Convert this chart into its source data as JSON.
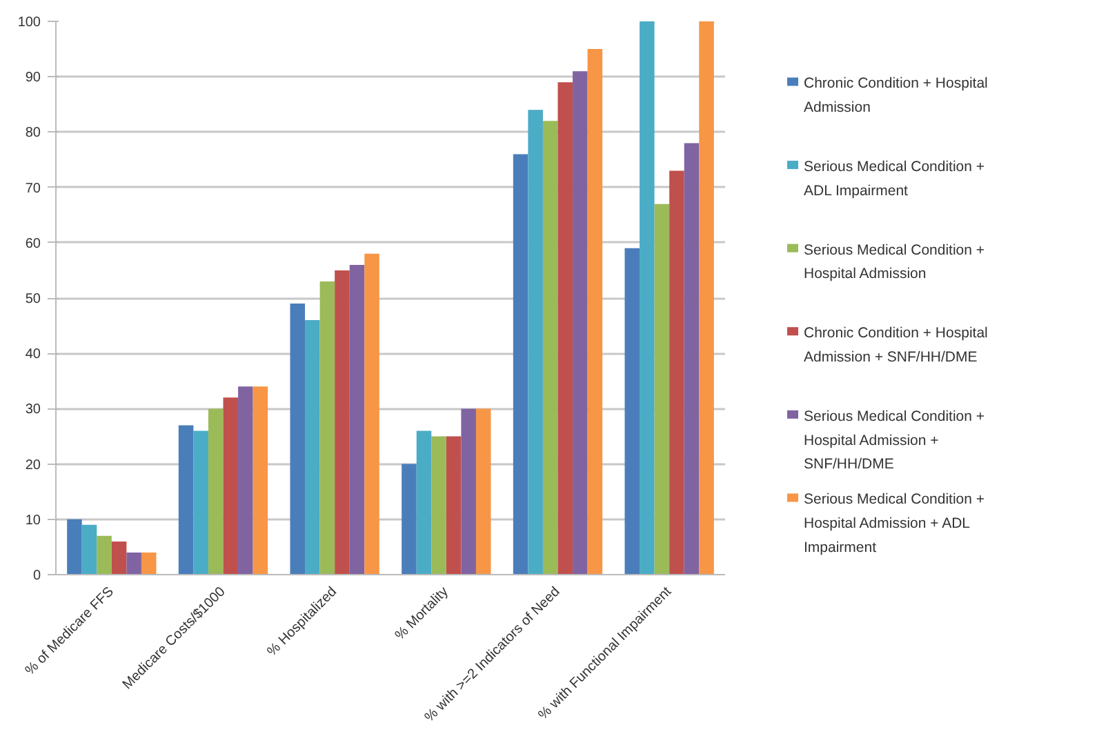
{
  "chart_data": {
    "type": "bar",
    "categories": [
      "% of Medicare FFS",
      "Medicare Costs/$1000",
      "% Hospitalized",
      "% Mortality",
      "% with >=2 Indicators of Need",
      "% with Functional Impairment"
    ],
    "series": [
      {
        "name": "Chronic Condition + Hospital Admission",
        "color": "#4a7ebb",
        "values": [
          10,
          27,
          49,
          20,
          76,
          59
        ]
      },
      {
        "name": "Serious Medical Condition + ADL Impairment",
        "color": "#4bacc6",
        "values": [
          9,
          26,
          46,
          26,
          84,
          100
        ]
      },
      {
        "name": "Serious Medical Condition + Hospital Admission",
        "color": "#9bbb59",
        "values": [
          7,
          30,
          53,
          25,
          82,
          67
        ]
      },
      {
        "name": "Chronic Condition + Hospital Admission + SNF/HH/DME",
        "color": "#c0504d",
        "values": [
          6,
          32,
          55,
          25,
          89,
          73
        ]
      },
      {
        "name": "Serious Medical Condition + Hospital Admission + SNF/HH/DME",
        "color": "#8064a2",
        "values": [
          4,
          34,
          56,
          30,
          91,
          78
        ]
      },
      {
        "name": "Serious Medical Condition + Hospital Admission + ADL Impairment",
        "color": "#f79646",
        "values": [
          4,
          34,
          58,
          30,
          95,
          100
        ]
      }
    ],
    "ylim": [
      0,
      100
    ],
    "yticks": [
      0,
      10,
      20,
      30,
      40,
      50,
      60,
      70,
      80,
      90,
      100
    ],
    "grid": "y",
    "legend": "right"
  }
}
